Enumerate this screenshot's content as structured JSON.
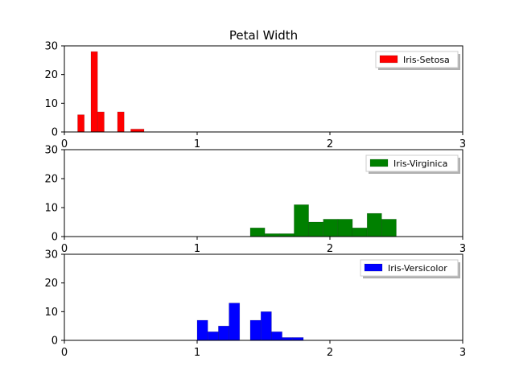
{
  "chart_data": {
    "title": "Petal Width",
    "panels": [
      {
        "type": "bar",
        "series": [
          {
            "name": "Iris-Setosa",
            "color": "#ff0000"
          }
        ],
        "xlim": [
          0,
          3
        ],
        "ylim": [
          0,
          30
        ],
        "xticks": [
          0,
          1,
          2,
          3
        ],
        "yticks": [
          0,
          10,
          20,
          30
        ],
        "legend": "top-right",
        "bars": [
          {
            "x0": 0.1,
            "x1": 0.15,
            "y": 6
          },
          {
            "x0": 0.2,
            "x1": 0.25,
            "y": 28
          },
          {
            "x0": 0.25,
            "x1": 0.3,
            "y": 7
          },
          {
            "x0": 0.4,
            "x1": 0.45,
            "y": 7
          },
          {
            "x0": 0.5,
            "x1": 0.6,
            "y": 1
          }
        ]
      },
      {
        "type": "bar",
        "series": [
          {
            "name": "Iris-Virginica",
            "color": "#008000"
          }
        ],
        "xlim": [
          0,
          3
        ],
        "ylim": [
          0,
          30
        ],
        "xticks": [
          0,
          1,
          2,
          3
        ],
        "yticks": [
          0,
          10,
          20,
          30
        ],
        "legend": "top-right",
        "bars": [
          {
            "x0": 1.4,
            "x1": 1.51,
            "y": 3
          },
          {
            "x0": 1.51,
            "x1": 1.62,
            "y": 1
          },
          {
            "x0": 1.62,
            "x1": 1.73,
            "y": 1
          },
          {
            "x0": 1.73,
            "x1": 1.84,
            "y": 11
          },
          {
            "x0": 1.84,
            "x1": 1.95,
            "y": 5
          },
          {
            "x0": 1.95,
            "x1": 2.06,
            "y": 6
          },
          {
            "x0": 2.06,
            "x1": 2.17,
            "y": 6
          },
          {
            "x0": 2.17,
            "x1": 2.28,
            "y": 3
          },
          {
            "x0": 2.28,
            "x1": 2.39,
            "y": 8
          },
          {
            "x0": 2.39,
            "x1": 2.5,
            "y": 6
          }
        ]
      },
      {
        "type": "bar",
        "series": [
          {
            "name": "Iris-Versicolor",
            "color": "#0000ff"
          }
        ],
        "xlim": [
          0,
          3
        ],
        "ylim": [
          0,
          30
        ],
        "xticks": [
          0,
          1,
          2,
          3
        ],
        "yticks": [
          0,
          10,
          20,
          30
        ],
        "legend": "top-right",
        "bars": [
          {
            "x0": 1.0,
            "x1": 1.08,
            "y": 7
          },
          {
            "x0": 1.08,
            "x1": 1.16,
            "y": 3
          },
          {
            "x0": 1.16,
            "x1": 1.24,
            "y": 5
          },
          {
            "x0": 1.24,
            "x1": 1.32,
            "y": 13
          },
          {
            "x0": 1.4,
            "x1": 1.48,
            "y": 7
          },
          {
            "x0": 1.48,
            "x1": 1.56,
            "y": 10
          },
          {
            "x0": 1.56,
            "x1": 1.64,
            "y": 3
          },
          {
            "x0": 1.64,
            "x1": 1.72,
            "y": 1
          },
          {
            "x0": 1.72,
            "x1": 1.8,
            "y": 1
          }
        ]
      }
    ]
  }
}
